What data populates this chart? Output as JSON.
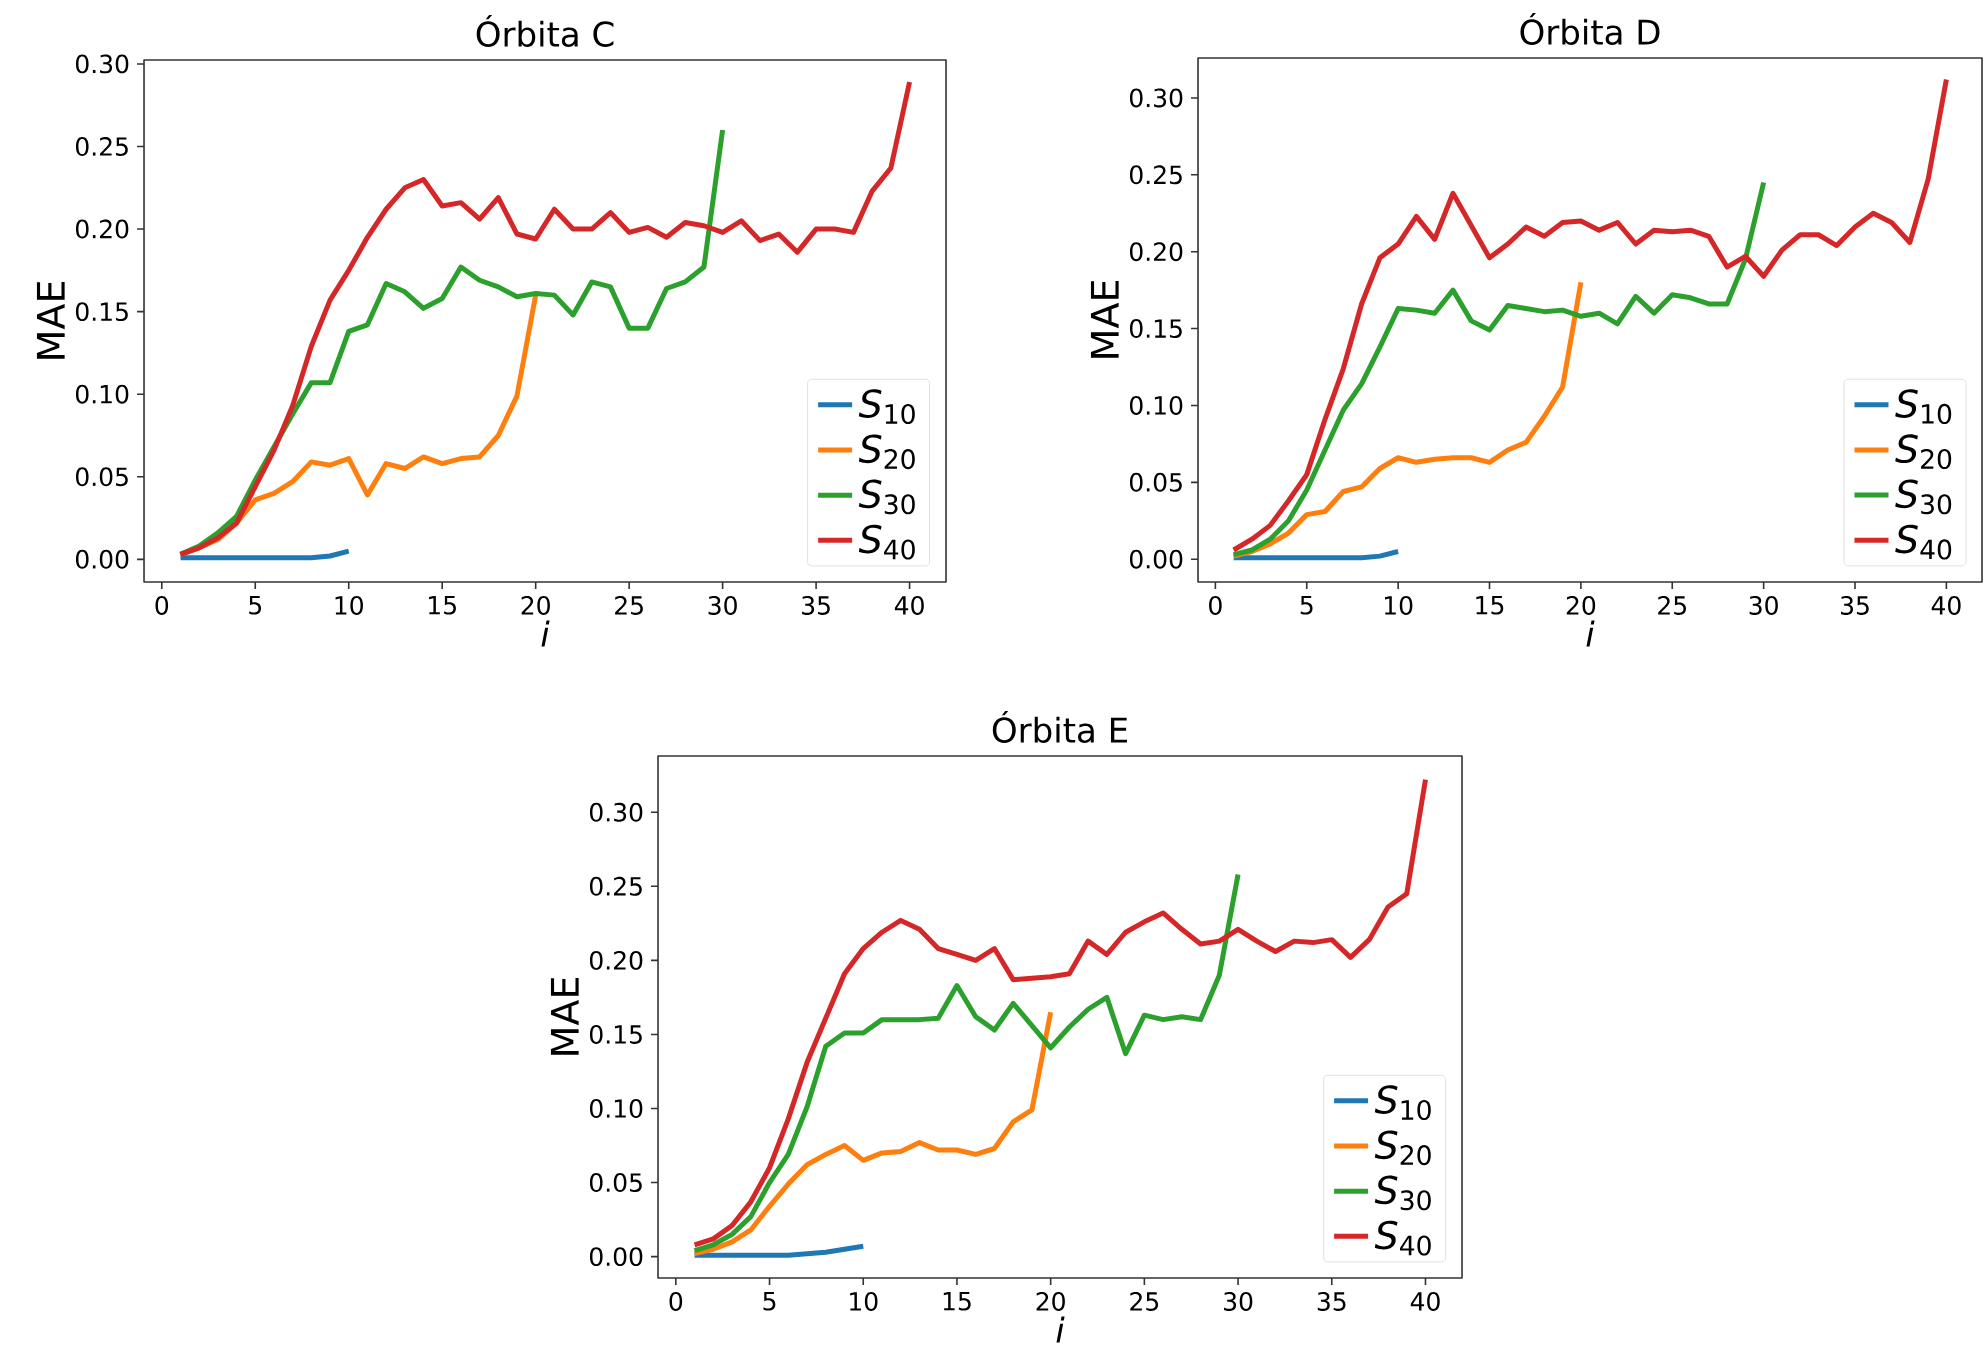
{
  "chart_data": [
    {
      "type": "line",
      "title": "Órbita C",
      "xlabel": "i",
      "ylabel": "MAE",
      "legend": "bottom right",
      "xlim": [
        -0.95,
        41.95
      ],
      "ylim": [
        -0.0137,
        0.3024
      ],
      "xticks": [
        0,
        5,
        10,
        15,
        20,
        25,
        30,
        35,
        40
      ],
      "yticks": [
        {
          "value": 0,
          "label": "0.00"
        },
        {
          "value": 0.05,
          "label": "0.05"
        },
        {
          "value": 0.1,
          "label": "0.10"
        },
        {
          "value": 0.15,
          "label": "0.15"
        },
        {
          "value": 0.2,
          "label": "0.20"
        },
        {
          "value": 0.25,
          "label": "0.25"
        },
        {
          "value": 0.3,
          "label": "0.30"
        }
      ],
      "series": [
        {
          "name": "*S*$_{10}$",
          "color": "#1f77b4",
          "x": [
            1,
            2,
            3,
            4,
            5,
            6,
            7,
            8,
            9,
            10
          ],
          "values": [
            0.001,
            0.001,
            0.001,
            0.001,
            0.001,
            0.001,
            0.001,
            0.001,
            0.002,
            0.005
          ]
        },
        {
          "name": "*S*$_{20}$",
          "color": "#ff7f0e",
          "x": [
            1,
            2,
            3,
            4,
            5,
            6,
            7,
            8,
            9,
            10,
            11,
            12,
            13,
            14,
            15,
            16,
            17,
            18,
            19,
            20
          ],
          "values": [
            0.003,
            0.007,
            0.012,
            0.022,
            0.036,
            0.04,
            0.047,
            0.059,
            0.057,
            0.061,
            0.039,
            0.058,
            0.055,
            0.062,
            0.058,
            0.061,
            0.062,
            0.075,
            0.099,
            0.16
          ]
        },
        {
          "name": "*S*$_{30}$",
          "color": "#2ca02c",
          "x": [
            1,
            2,
            3,
            4,
            5,
            6,
            7,
            8,
            9,
            10,
            11,
            12,
            13,
            14,
            15,
            16,
            17,
            18,
            19,
            20,
            21,
            22,
            23,
            24,
            25,
            26,
            27,
            28,
            29,
            30
          ],
          "values": [
            0.003,
            0.008,
            0.016,
            0.026,
            0.048,
            0.068,
            0.088,
            0.107,
            0.107,
            0.138,
            0.142,
            0.167,
            0.162,
            0.152,
            0.158,
            0.177,
            0.169,
            0.165,
            0.159,
            0.161,
            0.16,
            0.148,
            0.168,
            0.165,
            0.14,
            0.14,
            0.164,
            0.168,
            0.177,
            0.26
          ]
        },
        {
          "name": "*S*$_{40}$",
          "color": "#d62728",
          "x": [
            1,
            2,
            3,
            4,
            5,
            6,
            7,
            8,
            9,
            10,
            11,
            12,
            13,
            14,
            15,
            16,
            17,
            18,
            19,
            20,
            21,
            22,
            23,
            24,
            25,
            26,
            27,
            28,
            29,
            30,
            31,
            32,
            33,
            34,
            35,
            36,
            37,
            38,
            39,
            40
          ],
          "values": [
            0.003,
            0.007,
            0.013,
            0.022,
            0.044,
            0.066,
            0.093,
            0.129,
            0.157,
            0.175,
            0.195,
            0.212,
            0.225,
            0.23,
            0.214,
            0.216,
            0.206,
            0.219,
            0.197,
            0.194,
            0.212,
            0.2,
            0.2,
            0.21,
            0.198,
            0.201,
            0.195,
            0.204,
            0.202,
            0.198,
            0.205,
            0.193,
            0.197,
            0.186,
            0.2,
            0.2,
            0.198,
            0.223,
            0.237,
            0.289
          ]
        }
      ]
    },
    {
      "type": "line",
      "title": "Órbita D",
      "xlabel": "i",
      "ylabel": "MAE",
      "legend": "bottom right",
      "xlim": [
        -0.95,
        41.95
      ],
      "ylim": [
        -0.0148,
        0.326
      ],
      "xticks": [
        0,
        5,
        10,
        15,
        20,
        25,
        30,
        35,
        40
      ],
      "yticks": [
        {
          "value": 0,
          "label": "0.00"
        },
        {
          "value": 0.05,
          "label": "0.05"
        },
        {
          "value": 0.1,
          "label": "0.10"
        },
        {
          "value": 0.15,
          "label": "0.15"
        },
        {
          "value": 0.2,
          "label": "0.20"
        },
        {
          "value": 0.25,
          "label": "0.25"
        },
        {
          "value": 0.3,
          "label": "0.30"
        }
      ],
      "series": [
        {
          "name": "*S*$_{10}$",
          "color": "#1f77b4",
          "x": [
            1,
            2,
            3,
            4,
            5,
            6,
            7,
            8,
            9,
            10
          ],
          "values": [
            0.001,
            0.001,
            0.001,
            0.001,
            0.001,
            0.001,
            0.001,
            0.001,
            0.002,
            0.005
          ]
        },
        {
          "name": "*S*$_{20}$",
          "color": "#ff7f0e",
          "x": [
            1,
            2,
            3,
            4,
            5,
            6,
            7,
            8,
            9,
            10,
            11,
            12,
            13,
            14,
            15,
            16,
            17,
            18,
            19,
            20
          ],
          "values": [
            0.002,
            0.005,
            0.01,
            0.017,
            0.029,
            0.031,
            0.044,
            0.047,
            0.059,
            0.066,
            0.063,
            0.065,
            0.066,
            0.066,
            0.063,
            0.071,
            0.076,
            0.093,
            0.112,
            0.18
          ]
        },
        {
          "name": "*S*$_{30}$",
          "color": "#2ca02c",
          "x": [
            1,
            2,
            3,
            4,
            5,
            6,
            7,
            8,
            9,
            10,
            11,
            12,
            13,
            14,
            15,
            16,
            17,
            18,
            19,
            20,
            21,
            22,
            23,
            24,
            25,
            26,
            27,
            28,
            29,
            30
          ],
          "values": [
            0.003,
            0.006,
            0.013,
            0.025,
            0.045,
            0.071,
            0.097,
            0.114,
            0.138,
            0.163,
            0.162,
            0.16,
            0.175,
            0.155,
            0.149,
            0.165,
            0.163,
            0.161,
            0.162,
            0.158,
            0.16,
            0.153,
            0.171,
            0.16,
            0.172,
            0.17,
            0.166,
            0.166,
            0.195,
            0.245
          ]
        },
        {
          "name": "*S*$_{40}$",
          "color": "#d62728",
          "x": [
            1,
            2,
            3,
            4,
            5,
            6,
            7,
            8,
            9,
            10,
            11,
            12,
            13,
            14,
            15,
            16,
            17,
            18,
            19,
            20,
            21,
            22,
            23,
            24,
            25,
            26,
            27,
            28,
            29,
            30,
            31,
            32,
            33,
            34,
            35,
            36,
            37,
            38,
            39,
            40
          ],
          "values": [
            0.006,
            0.013,
            0.022,
            0.038,
            0.055,
            0.091,
            0.124,
            0.166,
            0.196,
            0.205,
            0.223,
            0.208,
            0.238,
            0.217,
            0.196,
            0.205,
            0.216,
            0.21,
            0.219,
            0.22,
            0.214,
            0.219,
            0.205,
            0.214,
            0.213,
            0.214,
            0.21,
            0.19,
            0.197,
            0.184,
            0.201,
            0.211,
            0.211,
            0.204,
            0.216,
            0.225,
            0.219,
            0.206,
            0.247,
            0.312
          ]
        }
      ]
    },
    {
      "type": "line",
      "title": "Órbita E",
      "xlabel": "i",
      "ylabel": "MAE",
      "legend": "bottom right",
      "xlim": [
        -0.95,
        41.95
      ],
      "ylim": [
        -0.0144,
        0.338
      ],
      "xticks": [
        0,
        5,
        10,
        15,
        20,
        25,
        30,
        35,
        40
      ],
      "yticks": [
        {
          "value": 0,
          "label": "0.00"
        },
        {
          "value": 0.05,
          "label": "0.05"
        },
        {
          "value": 0.1,
          "label": "0.10"
        },
        {
          "value": 0.15,
          "label": "0.15"
        },
        {
          "value": 0.2,
          "label": "0.20"
        },
        {
          "value": 0.25,
          "label": "0.25"
        },
        {
          "value": 0.3,
          "label": "0.30"
        }
      ],
      "series": [
        {
          "name": "*S*$_{10}$",
          "color": "#1f77b4",
          "x": [
            1,
            2,
            3,
            4,
            5,
            6,
            7,
            8,
            9,
            10
          ],
          "values": [
            0.001,
            0.001,
            0.001,
            0.001,
            0.001,
            0.001,
            0.002,
            0.003,
            0.005,
            0.007
          ]
        },
        {
          "name": "*S*$_{20}$",
          "color": "#ff7f0e",
          "x": [
            1,
            2,
            3,
            4,
            5,
            6,
            7,
            8,
            9,
            10,
            11,
            12,
            13,
            14,
            15,
            16,
            17,
            18,
            19,
            20
          ],
          "values": [
            0.002,
            0.005,
            0.01,
            0.018,
            0.034,
            0.049,
            0.062,
            0.069,
            0.075,
            0.065,
            0.07,
            0.071,
            0.077,
            0.072,
            0.072,
            0.069,
            0.073,
            0.091,
            0.099,
            0.165
          ]
        },
        {
          "name": "*S*$_{30}$",
          "color": "#2ca02c",
          "x": [
            1,
            2,
            3,
            4,
            5,
            6,
            7,
            8,
            9,
            10,
            11,
            12,
            13,
            14,
            15,
            16,
            17,
            18,
            19,
            20,
            21,
            22,
            23,
            24,
            25,
            26,
            27,
            28,
            29,
            30
          ],
          "values": [
            0.004,
            0.008,
            0.015,
            0.027,
            0.05,
            0.069,
            0.101,
            0.142,
            0.151,
            0.151,
            0.16,
            0.16,
            0.16,
            0.161,
            0.183,
            0.162,
            0.153,
            0.171,
            0.156,
            0.141,
            0.155,
            0.167,
            0.175,
            0.137,
            0.163,
            0.16,
            0.162,
            0.16,
            0.19,
            0.258
          ]
        },
        {
          "name": "*S*$_{40}$",
          "color": "#d62728",
          "x": [
            1,
            2,
            3,
            4,
            5,
            6,
            7,
            8,
            9,
            10,
            11,
            12,
            13,
            14,
            15,
            16,
            17,
            18,
            19,
            20,
            21,
            22,
            23,
            24,
            25,
            26,
            27,
            28,
            29,
            30,
            31,
            32,
            33,
            34,
            35,
            36,
            37,
            38,
            39,
            40
          ],
          "values": [
            0.008,
            0.012,
            0.021,
            0.037,
            0.06,
            0.093,
            0.131,
            0.161,
            0.191,
            0.208,
            0.219,
            0.227,
            0.221,
            0.208,
            0.204,
            0.2,
            0.208,
            0.187,
            0.188,
            0.189,
            0.191,
            0.213,
            0.204,
            0.219,
            0.226,
            0.232,
            0.221,
            0.211,
            0.213,
            0.221,
            0.213,
            0.206,
            0.213,
            0.212,
            0.214,
            0.202,
            0.214,
            0.236,
            0.245,
            0.322
          ]
        }
      ]
    }
  ]
}
